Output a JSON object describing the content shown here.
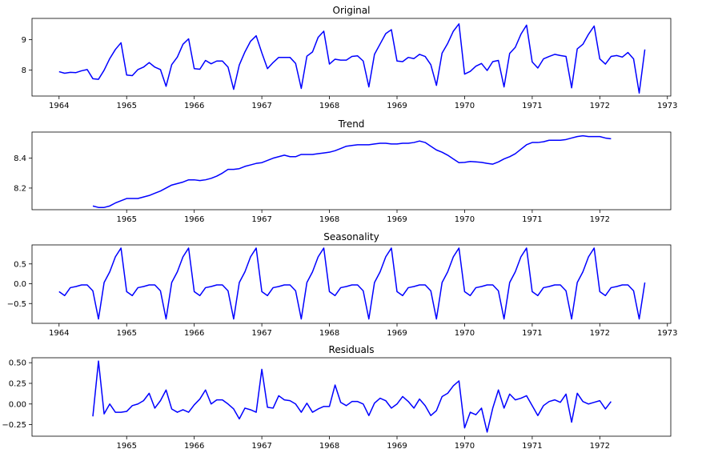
{
  "chart_data": [
    {
      "type": "line",
      "title": "Original",
      "xlim": [
        1963.6,
        1973.05
      ],
      "ylim": [
        7.15,
        9.7
      ],
      "xticks": [
        1964,
        1965,
        1966,
        1967,
        1968,
        1969,
        1970,
        1971,
        1972,
        1973
      ],
      "xticklabels": [
        "1964",
        "1965",
        "1966",
        "1967",
        "1968",
        "1969",
        "1970",
        "1971",
        "1972",
        "1973"
      ],
      "yticks": [
        8,
        9
      ],
      "yticklabels": [
        "8",
        "9"
      ],
      "x_start": 1964.0,
      "x_step": 0.08333,
      "color": "#0000ff",
      "values": [
        7.95,
        7.9,
        7.93,
        7.92,
        7.98,
        8.02,
        7.72,
        7.7,
        8.0,
        8.38,
        8.68,
        8.9,
        7.84,
        7.82,
        8.02,
        8.1,
        8.25,
        8.1,
        8.02,
        7.47,
        8.18,
        8.43,
        8.85,
        9.03,
        8.05,
        8.03,
        8.32,
        8.21,
        8.3,
        8.3,
        8.1,
        7.37,
        8.17,
        8.6,
        8.95,
        9.13,
        8.57,
        8.05,
        8.25,
        8.42,
        8.42,
        8.42,
        8.22,
        7.4,
        8.46,
        8.6,
        9.08,
        9.28,
        8.2,
        8.36,
        8.33,
        8.33,
        8.45,
        8.47,
        8.3,
        7.45,
        8.52,
        8.86,
        9.2,
        9.33,
        8.3,
        8.28,
        8.42,
        8.38,
        8.52,
        8.45,
        8.18,
        7.5,
        8.56,
        8.88,
        9.28,
        9.52,
        7.87,
        7.96,
        8.13,
        8.22,
        7.99,
        8.28,
        8.32,
        7.45,
        8.55,
        8.75,
        9.18,
        9.48,
        8.27,
        8.07,
        8.37,
        8.45,
        8.52,
        8.48,
        8.45,
        7.42,
        8.7,
        8.85,
        9.18,
        9.45,
        8.37,
        8.2,
        8.45,
        8.48,
        8.43,
        8.58,
        8.37,
        7.25,
        8.68
      ]
    },
    {
      "type": "line",
      "title": "Trend",
      "xlim": [
        1963.6,
        1973.05
      ],
      "ylim": [
        8.055,
        8.575
      ],
      "xticks": [
        1965,
        1966,
        1967,
        1968,
        1969,
        1970,
        1971,
        1972
      ],
      "xticklabels": [
        "1965",
        "1966",
        "1967",
        "1968",
        "1969",
        "1970",
        "1971",
        "1972"
      ],
      "yticks": [
        8.2,
        8.4
      ],
      "yticklabels": [
        "8.2",
        "8.4"
      ],
      "x_start": 1964.5,
      "x_step": 0.08333,
      "color": "#0000ff",
      "values": [
        8.08,
        8.07,
        8.07,
        8.08,
        8.1,
        8.115,
        8.13,
        8.13,
        8.13,
        8.14,
        8.15,
        8.165,
        8.18,
        8.2,
        8.22,
        8.23,
        8.24,
        8.255,
        8.255,
        8.25,
        8.255,
        8.265,
        8.28,
        8.3,
        8.325,
        8.325,
        8.33,
        8.345,
        8.355,
        8.365,
        8.37,
        8.385,
        8.4,
        8.41,
        8.42,
        8.41,
        8.41,
        8.425,
        8.425,
        8.425,
        8.43,
        8.435,
        8.44,
        8.45,
        8.465,
        8.48,
        8.485,
        8.49,
        8.49,
        8.49,
        8.495,
        8.5,
        8.5,
        8.495,
        8.495,
        8.5,
        8.5,
        8.505,
        8.515,
        8.505,
        8.48,
        8.455,
        8.44,
        8.42,
        8.395,
        8.37,
        8.372,
        8.378,
        8.375,
        8.372,
        8.365,
        8.36,
        8.375,
        8.395,
        8.41,
        8.43,
        8.46,
        8.49,
        8.505,
        8.505,
        8.51,
        8.52,
        8.52,
        8.52,
        8.525,
        8.535,
        8.545,
        8.55,
        8.545,
        8.545,
        8.545,
        8.535,
        8.53
      ]
    },
    {
      "type": "line",
      "title": "Seasonality",
      "xlim": [
        1963.6,
        1973.05
      ],
      "ylim": [
        -1.0,
        0.98
      ],
      "xticks": [
        1964,
        1965,
        1966,
        1967,
        1968,
        1969,
        1970,
        1971,
        1972,
        1973
      ],
      "xticklabels": [
        "1964",
        "1965",
        "1966",
        "1967",
        "1968",
        "1969",
        "1970",
        "1971",
        "1972",
        "1973"
      ],
      "yticks": [
        -0.5,
        0.0,
        0.5
      ],
      "yticklabels": [
        "−0.5",
        "0.0",
        "0.5"
      ],
      "x_start": 1964.0,
      "x_step": 0.08333,
      "color": "#0000ff",
      "season_pattern": [
        -0.2,
        -0.3,
        -0.1,
        -0.07,
        -0.03,
        -0.03,
        -0.18,
        -0.89,
        0.03,
        0.3,
        0.68,
        0.9
      ],
      "n_points": 105
    },
    {
      "type": "line",
      "title": "Residuals",
      "xlim": [
        1963.6,
        1973.05
      ],
      "ylim": [
        -0.39,
        0.56
      ],
      "xticks": [
        1965,
        1966,
        1967,
        1968,
        1969,
        1970,
        1971,
        1972
      ],
      "xticklabels": [
        "1965",
        "1966",
        "1967",
        "1968",
        "1969",
        "1970",
        "1971",
        "1972"
      ],
      "yticks": [
        -0.25,
        0.0,
        0.25,
        0.5
      ],
      "yticklabels": [
        "−0.25",
        "0.00",
        "0.25",
        "0.50"
      ],
      "x_start": 1964.5,
      "x_step": 0.08333,
      "color": "#0000ff",
      "values": [
        -0.15,
        0.52,
        -0.12,
        0.0,
        -0.1,
        -0.1,
        -0.09,
        -0.02,
        0.0,
        0.04,
        0.13,
        -0.05,
        0.04,
        0.17,
        -0.06,
        -0.1,
        -0.07,
        -0.1,
        -0.01,
        0.06,
        0.17,
        0.0,
        0.05,
        0.05,
        0.0,
        -0.06,
        -0.18,
        -0.05,
        -0.07,
        -0.1,
        0.42,
        -0.04,
        -0.05,
        0.1,
        0.05,
        0.04,
        0.0,
        -0.1,
        0.01,
        -0.1,
        -0.06,
        -0.03,
        -0.03,
        0.23,
        0.02,
        -0.02,
        0.03,
        0.03,
        0.0,
        -0.14,
        0.01,
        0.07,
        0.04,
        -0.05,
        0.0,
        0.09,
        0.03,
        -0.05,
        0.06,
        -0.02,
        -0.14,
        -0.08,
        0.09,
        0.13,
        0.22,
        0.28,
        -0.29,
        -0.1,
        -0.13,
        -0.05,
        -0.34,
        -0.05,
        0.17,
        -0.05,
        0.12,
        0.05,
        0.07,
        0.1,
        -0.02,
        -0.14,
        -0.02,
        0.03,
        0.05,
        0.02,
        0.12,
        -0.22,
        0.13,
        0.03,
        0.0,
        0.02,
        0.04,
        -0.06,
        0.03
      ]
    }
  ]
}
